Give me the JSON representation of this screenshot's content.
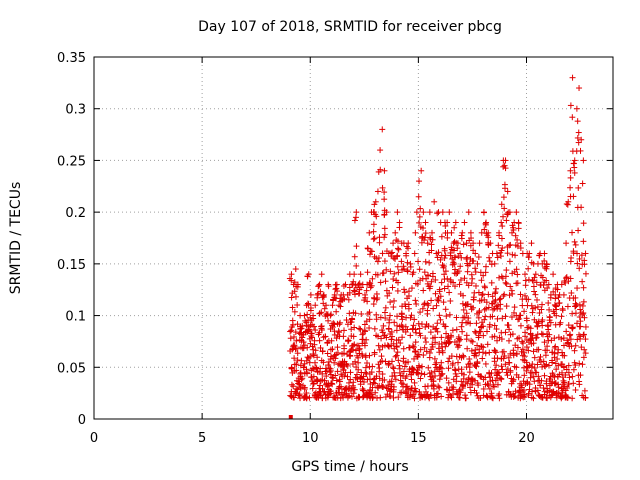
{
  "chart_data": {
    "type": "scatter",
    "title": "Day 107 of 2018, SRMTID for receiver pbcg",
    "xlabel": "GPS time / hours",
    "ylabel": "SRMTID / TECUs",
    "xlim": [
      0,
      24
    ],
    "ylim": [
      0,
      0.35
    ],
    "xticks": [
      0,
      5,
      10,
      15,
      20
    ],
    "xtick_labels": [
      "0",
      "5",
      "10",
      "15",
      "20"
    ],
    "yticks": [
      0,
      0.05,
      0.1,
      0.15,
      0.2,
      0.25,
      0.3,
      0.35
    ],
    "ytick_labels": [
      "0",
      "0.05",
      "0.1",
      "0.15",
      "0.2",
      "0.25",
      "0.3",
      "0.35"
    ],
    "grid": true,
    "marker": "+",
    "color": "#e00000",
    "outlier_marker_hour": 9.1,
    "series": [
      {
        "name": "SRMTID",
        "x": [
          9.1,
          9.2,
          9.3,
          9.4,
          9.5,
          9.6,
          9.7,
          9.8,
          9.9,
          10.0,
          10.1,
          10.2,
          10.3,
          10.4,
          10.5,
          10.6,
          10.7,
          10.8,
          10.9,
          11.0,
          11.1,
          11.2,
          11.3,
          11.4,
          11.5,
          11.6,
          11.7,
          11.8,
          11.9,
          12.0,
          12.1,
          12.2,
          12.3,
          12.4,
          12.5,
          12.6,
          12.7,
          12.8,
          12.9,
          13.0,
          13.1,
          13.2,
          13.3,
          13.4,
          13.5,
          13.6,
          13.7,
          13.8,
          13.9,
          14.0,
          14.1,
          14.2,
          14.3,
          14.4,
          14.5,
          14.6,
          14.7,
          14.8,
          14.9,
          15.0,
          15.1,
          15.2,
          15.3,
          15.4,
          15.5,
          15.6,
          15.7,
          15.8,
          15.9,
          16.0,
          16.1,
          16.2,
          16.3,
          16.4,
          16.5,
          16.6,
          16.7,
          16.8,
          16.9,
          17.0,
          17.1,
          17.2,
          17.3,
          17.4,
          17.5,
          17.6,
          17.7,
          17.8,
          17.9,
          18.0,
          18.1,
          18.2,
          18.3,
          18.4,
          18.5,
          18.6,
          18.7,
          18.8,
          18.9,
          19.0,
          19.1,
          19.2,
          19.3,
          19.4,
          19.5,
          19.6,
          19.7,
          19.8,
          19.9,
          20.0,
          20.1,
          20.2,
          20.3,
          20.4,
          20.5,
          20.6,
          20.7,
          20.8,
          20.9,
          21.0,
          21.1,
          21.2,
          21.3,
          21.4,
          21.5,
          21.6,
          21.7,
          21.8,
          21.9,
          22.0,
          22.1,
          22.2,
          22.3,
          22.4,
          22.5,
          22.6,
          22.7
        ],
        "upper": [
          0.14,
          0.13,
          0.145,
          0.13,
          0.1,
          0.09,
          0.1,
          0.11,
          0.14,
          0.12,
          0.1,
          0.11,
          0.12,
          0.13,
          0.14,
          0.12,
          0.11,
          0.13,
          0.1,
          0.11,
          0.12,
          0.13,
          0.11,
          0.12,
          0.12,
          0.13,
          0.12,
          0.14,
          0.13,
          0.14,
          0.2,
          0.13,
          0.14,
          0.13,
          0.12,
          0.13,
          0.18,
          0.2,
          0.2,
          0.21,
          0.22,
          0.26,
          0.28,
          0.24,
          0.2,
          0.16,
          0.16,
          0.17,
          0.18,
          0.2,
          0.19,
          0.17,
          0.17,
          0.16,
          0.17,
          0.15,
          0.14,
          0.16,
          0.2,
          0.23,
          0.24,
          0.2,
          0.19,
          0.17,
          0.2,
          0.18,
          0.21,
          0.16,
          0.2,
          0.19,
          0.2,
          0.19,
          0.19,
          0.2,
          0.18,
          0.17,
          0.19,
          0.17,
          0.16,
          0.18,
          0.19,
          0.17,
          0.2,
          0.18,
          0.17,
          0.16,
          0.15,
          0.17,
          0.18,
          0.2,
          0.19,
          0.18,
          0.17,
          0.16,
          0.15,
          0.16,
          0.18,
          0.19,
          0.25,
          0.25,
          0.22,
          0.2,
          0.18,
          0.19,
          0.2,
          0.19,
          0.17,
          0.16,
          0.14,
          0.16,
          0.16,
          0.17,
          0.15,
          0.14,
          0.15,
          0.16,
          0.15,
          0.16,
          0.15,
          0.13,
          0.12,
          0.14,
          0.12,
          0.13,
          0.12,
          0.13,
          0.12,
          0.17,
          0.21,
          0.24,
          0.33,
          0.25,
          0.3,
          0.32,
          0.27,
          0.25,
          0.16
        ]
      }
    ]
  }
}
